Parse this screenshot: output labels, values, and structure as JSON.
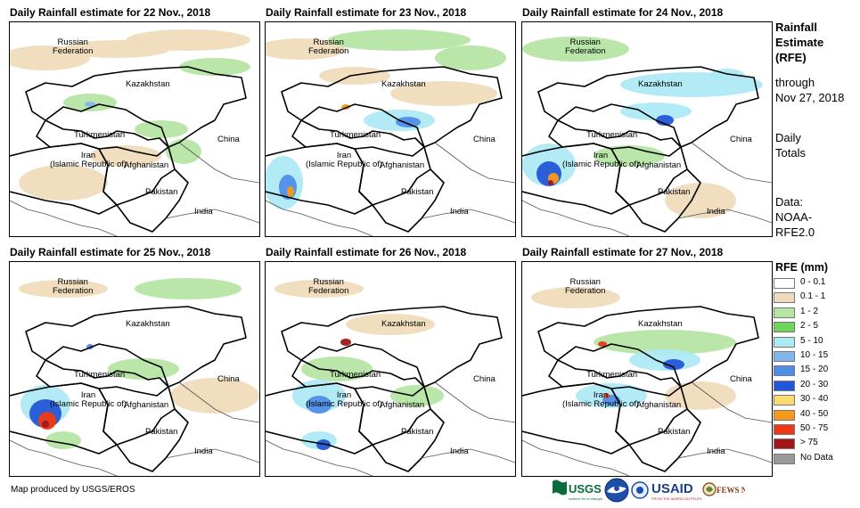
{
  "panels": [
    {
      "title": "Daily Rainfall estimate for 22 Nov., 2018"
    },
    {
      "title": "Daily Rainfall estimate for 23 Nov., 2018"
    },
    {
      "title": "Daily Rainfall estimate for 24 Nov., 2018"
    },
    {
      "title": "Daily Rainfall estimate for 25 Nov., 2018"
    },
    {
      "title": "Daily Rainfall estimate for 26 Nov., 2018"
    },
    {
      "title": "Daily Rainfall estimate for 27 Nov., 2018"
    }
  ],
  "map_labels": {
    "russia": "Russian\nFederation",
    "kazakhstan": "Kazakhstan",
    "turkmenistan": "Turkmenistan",
    "iran": "Iran\n(Islamic Republic of)",
    "afghanistan": "Afghanistan",
    "pakistan": "Pakistan",
    "china": "China",
    "india": "India"
  },
  "side_text": {
    "title_lines": [
      "Rainfall",
      "Estimate",
      "(RFE)"
    ],
    "through_lines": [
      "through",
      "Nov 27, 2018"
    ],
    "totals_lines": [
      "Daily",
      "Totals"
    ],
    "data_lines": [
      "Data:",
      "NOAA-",
      "RFE2.0"
    ]
  },
  "legend": {
    "title": "RFE (mm)",
    "items": [
      {
        "label": "0 - 0.1",
        "color": "#ffffff"
      },
      {
        "label": "0.1 - 1",
        "color": "#f0dcbc"
      },
      {
        "label": "1 - 2",
        "color": "#b6e6a4"
      },
      {
        "label": "2 - 5",
        "color": "#6ed45a"
      },
      {
        "label": "5 - 10",
        "color": "#aeeaf5"
      },
      {
        "label": "10 - 15",
        "color": "#7fb6ee"
      },
      {
        "label": "15 - 20",
        "color": "#4f8ee6"
      },
      {
        "label": "20 - 30",
        "color": "#2457d8"
      },
      {
        "label": "30 - 40",
        "color": "#f8dc70"
      },
      {
        "label": "40 - 50",
        "color": "#f59a18"
      },
      {
        "label": "50 - 75",
        "color": "#ee3a14"
      },
      {
        "label": "> 75",
        "color": "#a41616"
      },
      {
        "label": "No Data",
        "color": "#9a9a9a"
      }
    ]
  },
  "credit": "Map produced by USGS/EROS",
  "logos": [
    {
      "text": "USGS",
      "icon": "usgs-logo"
    },
    {
      "text": "NOAA",
      "icon": "noaa-logo"
    },
    {
      "text": "USAID",
      "icon": "usaid-logo"
    },
    {
      "text": "FEWS NET",
      "icon": "fewsnet-logo"
    }
  ]
}
